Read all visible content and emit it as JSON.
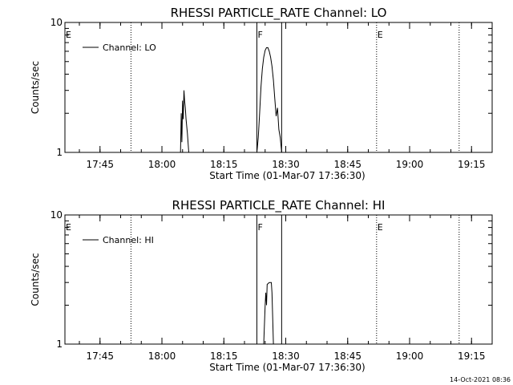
{
  "footer": {
    "timestamp": "14-Oct-2021 08:36"
  },
  "chart_data": [
    {
      "type": "line",
      "title": "RHESSI PARTICLE_RATE Channel: LO",
      "xlabel": "Start Time (01-Mar-07 17:36:30)",
      "ylabel": "Counts/sec",
      "y_scale": "log",
      "ylim": [
        1,
        10
      ],
      "y_ticks": [
        1,
        10
      ],
      "x_range": [
        "17:36:30",
        "19:20:00"
      ],
      "x_ticks": [
        "17:45",
        "18:00",
        "18:15",
        "18:30",
        "18:45",
        "19:00",
        "19:15"
      ],
      "legend": {
        "entries": [
          "Channel: LO"
        ],
        "placement": "top-left"
      },
      "markers": [
        {
          "time": "17:36:30",
          "label": "E",
          "style": "none"
        },
        {
          "time": "17:52:30",
          "label": "",
          "style": "dotted"
        },
        {
          "time": "18:23:00",
          "label": "F",
          "style": "solid"
        },
        {
          "time": "18:29:00",
          "label": "",
          "style": "solid"
        },
        {
          "time": "18:52:00",
          "label": "E",
          "style": "dotted"
        },
        {
          "time": "19:12:00",
          "label": "",
          "style": "dotted"
        }
      ],
      "series": [
        {
          "name": "Channel: LO",
          "segments": [
            [
              [
                "18:04:30",
                1
              ],
              [
                "18:04:40",
                2
              ],
              [
                "18:04:50",
                1.2
              ],
              [
                "18:05:00",
                2.5
              ],
              [
                "18:05:10",
                1.8
              ],
              [
                "18:05:20",
                3.0
              ],
              [
                "18:05:30",
                2.5
              ],
              [
                "18:05:40",
                2.2
              ],
              [
                "18:05:50",
                1.8
              ],
              [
                "18:06:10",
                1.4
              ],
              [
                "18:06:30",
                1
              ]
            ],
            [
              [
                "18:23:00",
                1
              ],
              [
                "18:23:20",
                1.3
              ],
              [
                "18:23:40",
                2.0
              ],
              [
                "18:24:00",
                3.2
              ],
              [
                "18:24:20",
                4.4
              ],
              [
                "18:24:40",
                5.4
              ],
              [
                "18:25:00",
                6.1
              ],
              [
                "18:25:20",
                6.4
              ],
              [
                "18:25:40",
                6.4
              ],
              [
                "18:26:00",
                6.0
              ],
              [
                "18:26:20",
                5.4
              ],
              [
                "18:26:40",
                4.6
              ],
              [
                "18:27:00",
                3.6
              ],
              [
                "18:27:20",
                2.6
              ],
              [
                "18:27:40",
                1.9
              ],
              [
                "18:28:00",
                2.2
              ],
              [
                "18:28:20",
                1.5
              ],
              [
                "18:28:40",
                1.3
              ],
              [
                "18:29:00",
                1
              ]
            ]
          ]
        }
      ]
    },
    {
      "type": "line",
      "title": "RHESSI PARTICLE_RATE Channel: HI",
      "xlabel": "Start Time (01-Mar-07 17:36:30)",
      "ylabel": "Counts/sec",
      "y_scale": "log",
      "ylim": [
        1,
        10
      ],
      "y_ticks": [
        1,
        10
      ],
      "x_range": [
        "17:36:30",
        "19:20:00"
      ],
      "x_ticks": [
        "17:45",
        "18:00",
        "18:15",
        "18:30",
        "18:45",
        "19:00",
        "19:15"
      ],
      "legend": {
        "entries": [
          "Channel: HI"
        ],
        "placement": "top-left"
      },
      "markers": [
        {
          "time": "17:36:30",
          "label": "E",
          "style": "none"
        },
        {
          "time": "17:52:30",
          "label": "",
          "style": "dotted"
        },
        {
          "time": "18:23:00",
          "label": "F",
          "style": "solid"
        },
        {
          "time": "18:29:00",
          "label": "",
          "style": "solid"
        },
        {
          "time": "18:52:00",
          "label": "E",
          "style": "dotted"
        },
        {
          "time": "19:12:00",
          "label": "",
          "style": "dotted"
        }
      ],
      "series": [
        {
          "name": "Channel: HI",
          "segments": [
            [
              [
                "18:24:40",
                1
              ],
              [
                "18:25:00",
                2.0
              ],
              [
                "18:25:10",
                2.5
              ],
              [
                "18:25:20",
                2.0
              ],
              [
                "18:25:30",
                2.9
              ],
              [
                "18:26:00",
                3.0
              ],
              [
                "18:26:30",
                3.0
              ],
              [
                "18:26:40",
                2.5
              ],
              [
                "18:26:50",
                1.6
              ],
              [
                "18:27:00",
                1
              ]
            ]
          ]
        }
      ]
    }
  ]
}
